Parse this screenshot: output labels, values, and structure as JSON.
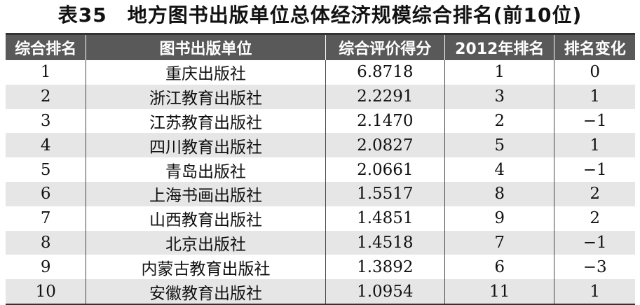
{
  "title": "表35　地方图书出版单位总体经济规模综合排名(前10位)",
  "headers": [
    "综合排名",
    "图书出版单位",
    "综合评价得分",
    "2012年排名",
    "排名变化"
  ],
  "rows": [
    [
      "1",
      "重庆出版社",
      "6.8718",
      "1",
      "0"
    ],
    [
      "2",
      "浙江教育出版社",
      "2.2291",
      "3",
      "1"
    ],
    [
      "3",
      "江苏教育出版社",
      "2.1470",
      "2",
      "−1"
    ],
    [
      "4",
      "四川教育出版社",
      "2.0827",
      "5",
      "1"
    ],
    [
      "5",
      "青岛出版社",
      "2.0661",
      "4",
      "−1"
    ],
    [
      "6",
      "上海书画出版社",
      "1.5517",
      "8",
      "2"
    ],
    [
      "7",
      "山西教育出版社",
      "1.4851",
      "9",
      "2"
    ],
    [
      "8",
      "北京出版社",
      "1.4518",
      "7",
      "−1"
    ],
    [
      "9",
      "内蒙古教育出版社",
      "1.3892",
      "6",
      "−3"
    ],
    [
      "10",
      "安徽教育出版社",
      "1.0954",
      "11",
      "1"
    ]
  ]
}
